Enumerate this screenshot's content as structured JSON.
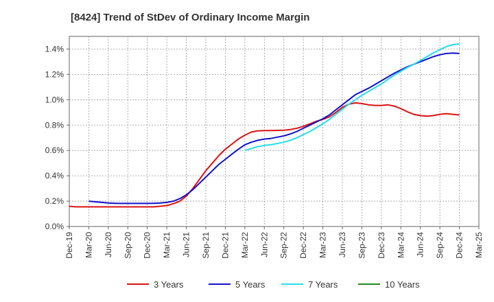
{
  "chart_data": {
    "type": "line",
    "title": "[8424]  Trend of StDev of Ordinary Income Margin",
    "xlabel": "",
    "ylabel": "",
    "x_ticks": [
      "Dec-19",
      "Mar-20",
      "Jun-20",
      "Sep-20",
      "Dec-20",
      "Mar-21",
      "Jun-21",
      "Sep-21",
      "Dec-21",
      "Mar-22",
      "Jun-22",
      "Sep-22",
      "Dec-22",
      "Mar-23",
      "Jun-23",
      "Sep-23",
      "Dec-23",
      "Mar-24",
      "Jun-24",
      "Sep-24",
      "Dec-24",
      "Mar-25"
    ],
    "y_ticks": [
      "0.0%",
      "0.2%",
      "0.4%",
      "0.6%",
      "0.8%",
      "1.0%",
      "1.2%",
      "1.4%"
    ],
    "ylim": [
      0,
      1.5
    ],
    "y_unit": "%",
    "grid": true,
    "legend_position": "bottom",
    "series": [
      {
        "name": "3 Years",
        "color": "#dd1111",
        "x": [
          "Dec-19",
          "Jan-20",
          "Feb-20",
          "Mar-20",
          "Apr-20",
          "May-20",
          "Jun-20",
          "Jul-20",
          "Aug-20",
          "Sep-20",
          "Oct-20",
          "Nov-20",
          "Dec-20",
          "Jan-21",
          "Feb-21",
          "Mar-21",
          "Apr-21",
          "May-21",
          "Jun-21",
          "Jul-21",
          "Aug-21",
          "Sep-21",
          "Oct-21",
          "Nov-21",
          "Dec-21",
          "Jan-22",
          "Feb-22",
          "Mar-22",
          "Apr-22",
          "May-22",
          "Jun-22",
          "Jul-22",
          "Aug-22",
          "Sep-22",
          "Oct-22",
          "Nov-22",
          "Dec-22",
          "Jan-23",
          "Feb-23",
          "Mar-23",
          "Apr-23",
          "May-23",
          "Jun-23",
          "Jul-23",
          "Aug-23",
          "Sep-23",
          "Oct-23",
          "Nov-23",
          "Dec-23",
          "Jan-24",
          "Feb-24",
          "Mar-24",
          "Apr-24",
          "May-24",
          "Jun-24",
          "Jul-24",
          "Aug-24",
          "Sep-24",
          "Oct-24",
          "Nov-24",
          "Dec-24"
        ],
        "values": [
          0.16,
          0.155,
          0.155,
          0.155,
          0.155,
          0.155,
          0.155,
          0.155,
          0.155,
          0.155,
          0.155,
          0.155,
          0.155,
          0.155,
          0.16,
          0.165,
          0.18,
          0.2,
          0.24,
          0.3,
          0.37,
          0.44,
          0.5,
          0.56,
          0.61,
          0.65,
          0.69,
          0.72,
          0.745,
          0.755,
          0.757,
          0.757,
          0.758,
          0.76,
          0.765,
          0.775,
          0.79,
          0.81,
          0.83,
          0.845,
          0.865,
          0.9,
          0.94,
          0.965,
          0.975,
          0.97,
          0.96,
          0.955,
          0.955,
          0.96,
          0.95,
          0.93,
          0.905,
          0.885,
          0.875,
          0.87,
          0.875,
          0.885,
          0.89,
          0.885,
          0.88
        ]
      },
      {
        "name": "5 Years",
        "color": "#1111cc",
        "x": [
          "Mar-20",
          "Apr-20",
          "May-20",
          "Jun-20",
          "Jul-20",
          "Aug-20",
          "Sep-20",
          "Oct-20",
          "Nov-20",
          "Dec-20",
          "Jan-21",
          "Feb-21",
          "Mar-21",
          "Apr-21",
          "May-21",
          "Jun-21",
          "Jul-21",
          "Aug-21",
          "Sep-21",
          "Oct-21",
          "Nov-21",
          "Dec-21",
          "Jan-22",
          "Feb-22",
          "Mar-22",
          "Apr-22",
          "May-22",
          "Jun-22",
          "Jul-22",
          "Aug-22",
          "Sep-22",
          "Oct-22",
          "Nov-22",
          "Dec-22",
          "Jan-23",
          "Feb-23",
          "Mar-23",
          "Apr-23",
          "May-23",
          "Jun-23",
          "Jul-23",
          "Aug-23",
          "Sep-23",
          "Oct-23",
          "Nov-23",
          "Dec-23",
          "Jan-24",
          "Feb-24",
          "Mar-24",
          "Apr-24",
          "May-24",
          "Jun-24",
          "Jul-24",
          "Aug-24",
          "Sep-24",
          "Oct-24",
          "Nov-24",
          "Dec-24"
        ],
        "values": [
          0.2,
          0.195,
          0.19,
          0.185,
          0.183,
          0.182,
          0.182,
          0.182,
          0.182,
          0.182,
          0.183,
          0.185,
          0.19,
          0.2,
          0.22,
          0.25,
          0.29,
          0.34,
          0.39,
          0.44,
          0.49,
          0.53,
          0.57,
          0.61,
          0.645,
          0.665,
          0.68,
          0.69,
          0.695,
          0.705,
          0.715,
          0.73,
          0.75,
          0.775,
          0.8,
          0.825,
          0.85,
          0.88,
          0.92,
          0.96,
          1.0,
          1.04,
          1.065,
          1.09,
          1.12,
          1.15,
          1.18,
          1.21,
          1.235,
          1.26,
          1.28,
          1.3,
          1.32,
          1.34,
          1.355,
          1.365,
          1.368,
          1.365
        ]
      },
      {
        "name": "7 Years",
        "color": "#22ddee",
        "x": [
          "Mar-22",
          "Apr-22",
          "May-22",
          "Jun-22",
          "Jul-22",
          "Aug-22",
          "Sep-22",
          "Oct-22",
          "Nov-22",
          "Dec-22",
          "Jan-23",
          "Feb-23",
          "Mar-23",
          "Apr-23",
          "May-23",
          "Jun-23",
          "Jul-23",
          "Aug-23",
          "Sep-23",
          "Oct-23",
          "Nov-23",
          "Dec-23",
          "Jan-24",
          "Feb-24",
          "Mar-24",
          "Apr-24",
          "May-24",
          "Jun-24",
          "Jul-24",
          "Aug-24",
          "Sep-24",
          "Oct-24",
          "Nov-24",
          "Dec-24"
        ],
        "values": [
          0.6,
          0.615,
          0.63,
          0.64,
          0.645,
          0.655,
          0.665,
          0.68,
          0.7,
          0.725,
          0.75,
          0.78,
          0.81,
          0.845,
          0.885,
          0.925,
          0.965,
          1.0,
          1.035,
          1.065,
          1.095,
          1.125,
          1.16,
          1.195,
          1.225,
          1.255,
          1.28,
          1.31,
          1.34,
          1.37,
          1.395,
          1.42,
          1.435,
          1.44
        ]
      },
      {
        "name": "10 Years",
        "color": "#228822",
        "x": [],
        "values": []
      }
    ]
  }
}
